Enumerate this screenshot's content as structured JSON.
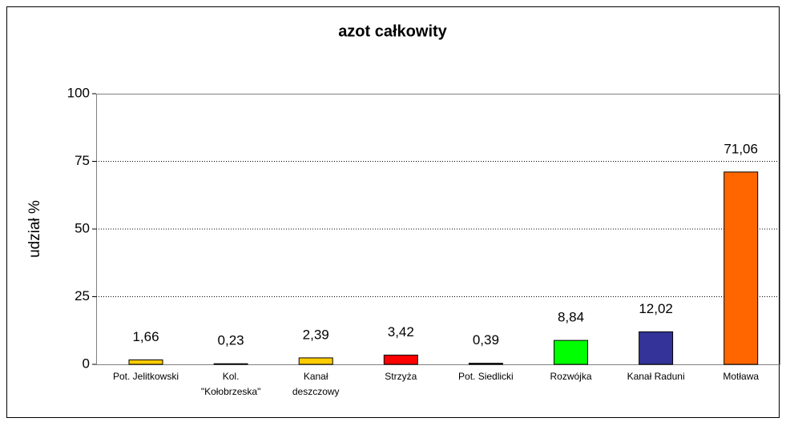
{
  "chart_data": {
    "type": "bar",
    "title": "azot całkowity",
    "y_label": "udział %",
    "categories": [
      "Pot. Jelitkowski",
      "Kol.\n\"Kołobrzeska\"",
      "Kanał\ndeszczowy",
      "Strzyża",
      "Pot. Siedlicki",
      "Rozwójka",
      "Kanał Raduni",
      "Motława"
    ],
    "values": [
      1.66,
      0.23,
      2.39,
      3.42,
      0.39,
      8.84,
      12.02,
      71.06
    ],
    "value_labels": [
      "1,66",
      "0,23",
      "2,39",
      "3,42",
      "0,39",
      "8,84",
      "12,02",
      "71,06"
    ],
    "colors": [
      "#ffcc00",
      "#ffcc00",
      "#ffcc00",
      "#ff0000",
      "#000000",
      "#00ff00",
      "#333399",
      "#ff6600"
    ],
    "ylim": [
      0,
      100
    ],
    "yticks": [
      0,
      25,
      50,
      75,
      100
    ],
    "grid": true
  }
}
